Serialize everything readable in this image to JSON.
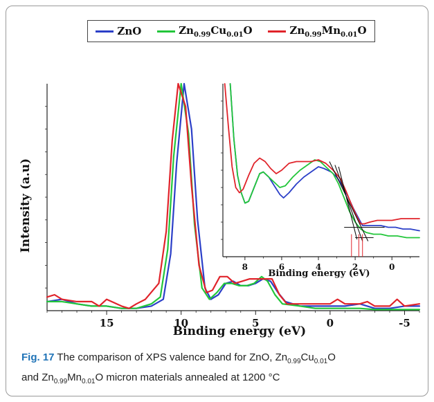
{
  "chart_data": [
    {
      "type": "line",
      "xlabel": "Binding energy (eV)",
      "ylabel": "Intensity (a.u)",
      "xlim": [
        19,
        -6
      ],
      "ylim": [
        0,
        100
      ],
      "x_reversed": true,
      "x_ticks": [
        "15",
        "10",
        "5",
        "0",
        "-5"
      ],
      "x_tick_values": [
        15,
        10,
        5,
        0,
        -5
      ],
      "series": [
        {
          "name": "ZnO",
          "color": "#2b3fc8",
          "points": [
            [
              19,
              4
            ],
            [
              18,
              5
            ],
            [
              17,
              3
            ],
            [
              16,
              2
            ],
            [
              15,
              2
            ],
            [
              14,
              1
            ],
            [
              13,
              1
            ],
            [
              12,
              2
            ],
            [
              11.2,
              5
            ],
            [
              10.7,
              25
            ],
            [
              10.3,
              65
            ],
            [
              9.8,
              100
            ],
            [
              9.3,
              80
            ],
            [
              8.9,
              40
            ],
            [
              8.4,
              10
            ],
            [
              8,
              5
            ],
            [
              7.5,
              7
            ],
            [
              7,
              12
            ],
            [
              6.5,
              13
            ],
            [
              6,
              11
            ],
            [
              5.5,
              11
            ],
            [
              5,
              12
            ],
            [
              4.5,
              14
            ],
            [
              4,
              13
            ],
            [
              3.5,
              8
            ],
            [
              3,
              4
            ],
            [
              2,
              2
            ],
            [
              1,
              2
            ],
            [
              0,
              2
            ],
            [
              -1,
              2
            ],
            [
              -2,
              3
            ],
            [
              -3,
              1
            ],
            [
              -4,
              1
            ],
            [
              -5,
              2
            ],
            [
              -6,
              2
            ]
          ]
        },
        {
          "name": "Zn0.99Cu0.01O",
          "color": "#22c63a",
          "points": [
            [
              19,
              4
            ],
            [
              18,
              4
            ],
            [
              17,
              3
            ],
            [
              16,
              2
            ],
            [
              15,
              2
            ],
            [
              14,
              1
            ],
            [
              13,
              1
            ],
            [
              12,
              3
            ],
            [
              11.4,
              6
            ],
            [
              10.9,
              27
            ],
            [
              10.5,
              68
            ],
            [
              10,
              100
            ],
            [
              9.5,
              78
            ],
            [
              9.1,
              38
            ],
            [
              8.6,
              10
            ],
            [
              8.1,
              5
            ],
            [
              7.6,
              8
            ],
            [
              7.1,
              12
            ],
            [
              6.6,
              12
            ],
            [
              6.1,
              11
            ],
            [
              5.6,
              11
            ],
            [
              5.1,
              12
            ],
            [
              4.6,
              15
            ],
            [
              4.2,
              13
            ],
            [
              3.7,
              7
            ],
            [
              3.2,
              3
            ],
            [
              2,
              2
            ],
            [
              1,
              1
            ],
            [
              0,
              1
            ],
            [
              -1,
              1
            ],
            [
              -2,
              1
            ],
            [
              -3,
              0.5
            ],
            [
              -4,
              0.5
            ],
            [
              -5,
              0.5
            ],
            [
              -6,
              0.5
            ]
          ]
        },
        {
          "name": "Zn0.99Mn0.01O",
          "color": "#e0232a",
          "points": [
            [
              19,
              6
            ],
            [
              18.5,
              7
            ],
            [
              18,
              5
            ],
            [
              17,
              4
            ],
            [
              16,
              4
            ],
            [
              15.5,
              2
            ],
            [
              15,
              5
            ],
            [
              14,
              2
            ],
            [
              13.5,
              1
            ],
            [
              13,
              3
            ],
            [
              12.4,
              5
            ],
            [
              11.5,
              12
            ],
            [
              11,
              35
            ],
            [
              10.6,
              75
            ],
            [
              10.2,
              100
            ],
            [
              9.7,
              90
            ],
            [
              9.3,
              55
            ],
            [
              8.8,
              20
            ],
            [
              8.3,
              8
            ],
            [
              7.9,
              9
            ],
            [
              7.4,
              15
            ],
            [
              6.9,
              15
            ],
            [
              6.4,
              12
            ],
            [
              5.9,
              13
            ],
            [
              5.4,
              14
            ],
            [
              4.9,
              14
            ],
            [
              4.4,
              14
            ],
            [
              3.9,
              14
            ],
            [
              3.4,
              7
            ],
            [
              2.9,
              3
            ],
            [
              2,
              3
            ],
            [
              1,
              3
            ],
            [
              0,
              3
            ],
            [
              -0.5,
              5
            ],
            [
              -1,
              3
            ],
            [
              -2,
              3
            ],
            [
              -2.5,
              4
            ],
            [
              -3,
              2
            ],
            [
              -4,
              2
            ],
            [
              -4.5,
              5
            ],
            [
              -5,
              2
            ],
            [
              -6,
              3
            ]
          ]
        }
      ]
    },
    {
      "type": "line",
      "inset": true,
      "xlabel": "Binding energy (eV)",
      "xlim": [
        9.2,
        -1.5
      ],
      "ylim": [
        0,
        100
      ],
      "x_reversed": true,
      "x_ticks": [
        "8",
        "6",
        "4",
        "2",
        "0"
      ],
      "x_tick_values": [
        8,
        6,
        4,
        2,
        0
      ],
      "series": [
        {
          "name": "ZnO",
          "color": "#2b3fc8",
          "points": [
            [
              8.8,
              100
            ],
            [
              8.6,
              68
            ],
            [
              8.4,
              47
            ],
            [
              8.2,
              37
            ],
            [
              8,
              31
            ],
            [
              7.8,
              32
            ],
            [
              7.5,
              40
            ],
            [
              7.2,
              48
            ],
            [
              7,
              49
            ],
            [
              6.7,
              46
            ],
            [
              6.4,
              41
            ],
            [
              6.1,
              36
            ],
            [
              5.9,
              34
            ],
            [
              5.6,
              37
            ],
            [
              5.2,
              42
            ],
            [
              4.8,
              46
            ],
            [
              4.4,
              49
            ],
            [
              4,
              52
            ],
            [
              3.7,
              51
            ],
            [
              3.3,
              49
            ],
            [
              3,
              46
            ],
            [
              2.7,
              41
            ],
            [
              2.4,
              35
            ],
            [
              2.1,
              28
            ],
            [
              1.8,
              22
            ],
            [
              1.6,
              18
            ],
            [
              1.4,
              18
            ],
            [
              1.2,
              18
            ],
            [
              1,
              18
            ],
            [
              0.6,
              18
            ],
            [
              0.2,
              17
            ],
            [
              -0.2,
              17
            ],
            [
              -0.6,
              16
            ],
            [
              -1,
              16
            ],
            [
              -1.5,
              15
            ]
          ]
        },
        {
          "name": "Zn0.99Cu0.01O",
          "color": "#22c63a",
          "points": [
            [
              8.8,
              100
            ],
            [
              8.6,
              68
            ],
            [
              8.4,
              47
            ],
            [
              8.2,
              37
            ],
            [
              8,
              31
            ],
            [
              7.8,
              32
            ],
            [
              7.5,
              40
            ],
            [
              7.2,
              48
            ],
            [
              7,
              49
            ],
            [
              6.7,
              46
            ],
            [
              6.4,
              43
            ],
            [
              6.1,
              40
            ],
            [
              5.8,
              41
            ],
            [
              5.4,
              46
            ],
            [
              5,
              50
            ],
            [
              4.6,
              53
            ],
            [
              4.2,
              56
            ],
            [
              3.9,
              55
            ],
            [
              3.6,
              52
            ],
            [
              3.2,
              48
            ],
            [
              2.9,
              42
            ],
            [
              2.6,
              34
            ],
            [
              2.3,
              26
            ],
            [
              2,
              20
            ],
            [
              1.7,
              16
            ],
            [
              1.4,
              14
            ],
            [
              1,
              13
            ],
            [
              0.6,
              13
            ],
            [
              0.2,
              12
            ],
            [
              -0.3,
              12
            ],
            [
              -0.8,
              11
            ],
            [
              -1.5,
              11
            ]
          ]
        },
        {
          "name": "Zn0.99Mn0.01O",
          "color": "#e0232a",
          "points": [
            [
              9.1,
              100
            ],
            [
              8.9,
              75
            ],
            [
              8.7,
              52
            ],
            [
              8.5,
              40
            ],
            [
              8.3,
              37
            ],
            [
              8.1,
              39
            ],
            [
              7.8,
              47
            ],
            [
              7.5,
              54
            ],
            [
              7.2,
              57
            ],
            [
              6.9,
              55
            ],
            [
              6.6,
              51
            ],
            [
              6.3,
              48
            ],
            [
              6,
              50
            ],
            [
              5.6,
              54
            ],
            [
              5.2,
              55
            ],
            [
              4.8,
              55
            ],
            [
              4.4,
              55
            ],
            [
              4,
              56
            ],
            [
              3.6,
              54
            ],
            [
              3.2,
              50
            ],
            [
              2.8,
              45
            ],
            [
              2.5,
              38
            ],
            [
              2.2,
              30
            ],
            [
              1.9,
              23
            ],
            [
              1.7,
              19
            ],
            [
              1.5,
              19
            ],
            [
              1.2,
              20
            ],
            [
              0.8,
              21
            ],
            [
              0.4,
              21
            ],
            [
              0,
              21
            ],
            [
              -0.5,
              22
            ],
            [
              -1,
              22
            ],
            [
              -1.5,
              22
            ]
          ]
        }
      ],
      "tangent_lines": [
        {
          "from": [
            3.4,
            55
          ],
          "to": [
            1.3,
            9
          ],
          "color": "#111111"
        },
        {
          "from": [
            3.1,
            53
          ],
          "to": [
            1.6,
            9
          ],
          "color": "#111111"
        },
        {
          "from": [
            2.9,
            52
          ],
          "to": [
            1.9,
            10
          ],
          "color": "#111111"
        },
        {
          "from": [
            2.6,
            17
          ],
          "to": [
            0.4,
            17
          ],
          "color": "#111111"
        },
        {
          "from": [
            2.0,
            11
          ],
          "to": [
            1.0,
            11
          ],
          "color": "#111111"
        }
      ],
      "onset_markers": [
        {
          "x": 2.2,
          "color": "#e0232a"
        },
        {
          "x": 1.8,
          "color": "#e0232a"
        },
        {
          "x": 1.6,
          "color": "#e0232a"
        }
      ]
    }
  ],
  "legend": {
    "items": [
      {
        "name": "ZnO",
        "base": "ZnO",
        "color": "#2b3fc8"
      },
      {
        "name": "Zn0.99Cu0.01O",
        "color": "#22c63a",
        "p1": "Zn",
        "s1": "0.99",
        "p2": "Cu",
        "s2": "0.01",
        "p3": "O"
      },
      {
        "name": "Zn0.99Mn0.01O",
        "color": "#e0232a",
        "p1": "Zn",
        "s1": "0.99",
        "p2": "Mn",
        "s2": "0.01",
        "p3": "O"
      }
    ]
  },
  "caption": {
    "fig_label": "Fig. 17",
    "t1": " The comparison of XPS valence band for ZnO, Zn",
    "s1": "0.99",
    "t2": "Cu",
    "s2": "0.01",
    "t3": "O",
    "t4": "and Zn",
    "s3": "0.99",
    "t5": "Mn",
    "s4": "0.01",
    "t6": "O micron materials annealed at 1200 °C"
  }
}
